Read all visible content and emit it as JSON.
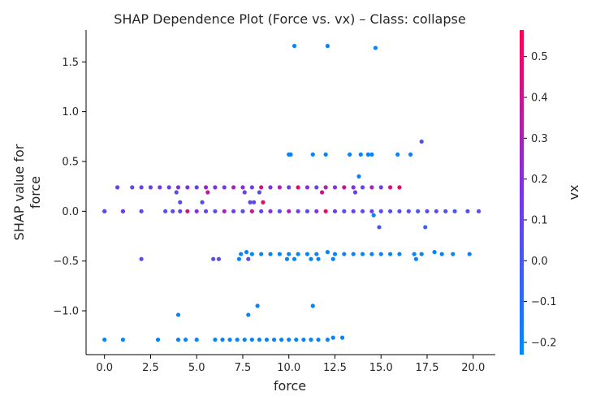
{
  "chart_data": {
    "type": "scatter",
    "title": "SHAP Dependence Plot (Force vs. vx) – Class: collapse",
    "xlabel": "force",
    "ylabel": "SHAP value for\nforce",
    "colorbar_label": "vx",
    "xlim": [
      -1.0,
      21.2
    ],
    "ylim": [
      -1.44,
      1.82
    ],
    "x_ticks": [
      0.0,
      2.5,
      5.0,
      7.5,
      10.0,
      12.5,
      15.0,
      17.5,
      20.0
    ],
    "x_tick_labels": [
      "0.0",
      "2.5",
      "5.0",
      "7.5",
      "10.0",
      "12.5",
      "15.0",
      "17.5",
      "20.0"
    ],
    "y_ticks": [
      -1.0,
      -0.5,
      0.0,
      0.5,
      1.0,
      1.5
    ],
    "y_tick_labels": [
      "−1.0",
      "−0.5",
      "0.0",
      "0.5",
      "1.0",
      "1.5"
    ],
    "colorbar_range": [
      -0.23,
      0.565
    ],
    "colorbar_ticks": [
      -0.2,
      -0.1,
      0.0,
      0.1,
      0.2,
      0.3,
      0.4,
      0.5
    ],
    "colorbar_tick_labels": [
      "−0.2",
      "−0.1",
      "0.0",
      "0.1",
      "0.2",
      "0.3",
      "0.4",
      "0.5"
    ],
    "colormap": [
      "#008afb",
      "#7b33e6",
      "#ff0052"
    ],
    "points": [
      [
        10.3,
        1.66,
        -0.2
      ],
      [
        12.1,
        1.66,
        -0.2
      ],
      [
        14.7,
        1.64,
        -0.2
      ],
      [
        17.2,
        0.7,
        0.05
      ],
      [
        10.0,
        0.57,
        -0.2
      ],
      [
        10.1,
        0.57,
        -0.2
      ],
      [
        11.3,
        0.57,
        -0.2
      ],
      [
        12.0,
        0.57,
        -0.2
      ],
      [
        13.3,
        0.57,
        -0.2
      ],
      [
        13.9,
        0.57,
        -0.2
      ],
      [
        14.3,
        0.57,
        -0.2
      ],
      [
        14.5,
        0.57,
        -0.2
      ],
      [
        15.9,
        0.57,
        -0.2
      ],
      [
        16.6,
        0.57,
        -0.2
      ],
      [
        13.8,
        0.35,
        -0.2
      ],
      [
        0.7,
        0.24,
        0.1
      ],
      [
        1.5,
        0.24,
        0.05
      ],
      [
        2.0,
        0.24,
        0.1
      ],
      [
        2.5,
        0.24,
        0.1
      ],
      [
        3.0,
        0.24,
        0.15
      ],
      [
        3.5,
        0.24,
        0.12
      ],
      [
        4.0,
        0.24,
        0.18
      ],
      [
        4.5,
        0.24,
        0.2
      ],
      [
        5.0,
        0.24,
        0.1
      ],
      [
        5.5,
        0.24,
        0.25
      ],
      [
        6.0,
        0.24,
        0.15
      ],
      [
        6.5,
        0.24,
        0.12
      ],
      [
        7.0,
        0.24,
        0.3
      ],
      [
        7.5,
        0.24,
        0.2
      ],
      [
        8.0,
        0.24,
        0.1
      ],
      [
        8.5,
        0.24,
        0.4
      ],
      [
        9.0,
        0.24,
        0.15
      ],
      [
        9.5,
        0.24,
        0.3
      ],
      [
        10.0,
        0.24,
        0.1
      ],
      [
        10.5,
        0.24,
        0.5
      ],
      [
        11.0,
        0.24,
        0.2
      ],
      [
        11.5,
        0.24,
        0.1
      ],
      [
        12.0,
        0.24,
        0.3
      ],
      [
        12.5,
        0.24,
        0.15
      ],
      [
        13.0,
        0.24,
        0.4
      ],
      [
        13.5,
        0.24,
        0.2
      ],
      [
        14.0,
        0.24,
        0.1
      ],
      [
        14.5,
        0.24,
        0.3
      ],
      [
        15.0,
        0.24,
        0.1
      ],
      [
        15.5,
        0.24,
        0.45
      ],
      [
        16.0,
        0.24,
        0.5
      ],
      [
        3.9,
        0.19,
        0.05
      ],
      [
        5.6,
        0.19,
        0.35
      ],
      [
        7.6,
        0.19,
        0.1
      ],
      [
        8.4,
        0.19,
        0.05
      ],
      [
        11.8,
        0.19,
        0.4
      ],
      [
        13.6,
        0.19,
        0.1
      ],
      [
        4.1,
        0.09,
        0.05
      ],
      [
        5.3,
        0.09,
        0.05
      ],
      [
        7.9,
        0.09,
        0.1
      ],
      [
        8.1,
        0.09,
        0.05
      ],
      [
        8.6,
        0.09,
        0.5
      ],
      [
        0.0,
        0.0,
        0.3
      ],
      [
        0.0,
        0.0,
        0.05
      ],
      [
        1.0,
        0.0,
        0.5
      ],
      [
        1.0,
        0.0,
        0.1
      ],
      [
        2.0,
        0.0,
        0.1
      ],
      [
        3.3,
        0.0,
        0.05
      ],
      [
        3.7,
        0.0,
        0.05
      ],
      [
        4.1,
        0.0,
        0.1
      ],
      [
        4.5,
        0.0,
        0.4
      ],
      [
        5.0,
        0.0,
        0.2
      ],
      [
        5.5,
        0.0,
        0.1
      ],
      [
        6.0,
        0.0,
        0.05
      ],
      [
        6.5,
        0.0,
        0.3
      ],
      [
        7.0,
        0.0,
        0.1
      ],
      [
        7.5,
        0.0,
        0.05
      ],
      [
        8.0,
        0.0,
        0.4
      ],
      [
        8.5,
        0.0,
        0.1
      ],
      [
        9.0,
        0.0,
        0.2
      ],
      [
        9.5,
        0.0,
        0.05
      ],
      [
        10.0,
        0.0,
        0.3
      ],
      [
        10.5,
        0.0,
        0.1
      ],
      [
        11.0,
        0.0,
        0.05
      ],
      [
        11.5,
        0.0,
        0.2
      ],
      [
        12.0,
        0.0,
        0.5
      ],
      [
        12.5,
        0.0,
        0.1
      ],
      [
        13.0,
        0.0,
        0.05
      ],
      [
        13.5,
        0.0,
        0.1
      ],
      [
        14.0,
        0.0,
        0.05
      ],
      [
        14.5,
        0.0,
        0.1
      ],
      [
        15.0,
        0.0,
        0.05
      ],
      [
        15.5,
        0.0,
        0.05
      ],
      [
        16.0,
        0.0,
        0.05
      ],
      [
        16.5,
        0.0,
        0.05
      ],
      [
        17.0,
        0.0,
        0.0
      ],
      [
        17.5,
        0.0,
        0.05
      ],
      [
        18.0,
        0.0,
        0.05
      ],
      [
        18.5,
        0.0,
        0.05
      ],
      [
        19.0,
        0.0,
        0.0
      ],
      [
        19.7,
        0.0,
        0.05
      ],
      [
        20.3,
        0.0,
        0.05
      ],
      [
        14.6,
        -0.04,
        -0.2
      ],
      [
        17.4,
        -0.16,
        -0.05
      ],
      [
        14.9,
        -0.16,
        0.0
      ],
      [
        7.7,
        -0.41,
        -0.2
      ],
      [
        12.1,
        -0.41,
        -0.2
      ],
      [
        17.9,
        -0.41,
        -0.2
      ],
      [
        7.4,
        -0.43,
        -0.2
      ],
      [
        8.0,
        -0.43,
        -0.2
      ],
      [
        8.5,
        -0.43,
        -0.2
      ],
      [
        9.0,
        -0.43,
        -0.2
      ],
      [
        9.5,
        -0.43,
        -0.2
      ],
      [
        10.0,
        -0.43,
        -0.2
      ],
      [
        10.5,
        -0.43,
        -0.2
      ],
      [
        11.0,
        -0.43,
        -0.2
      ],
      [
        11.5,
        -0.43,
        -0.2
      ],
      [
        12.5,
        -0.43,
        -0.2
      ],
      [
        13.0,
        -0.43,
        -0.2
      ],
      [
        13.5,
        -0.43,
        -0.2
      ],
      [
        14.0,
        -0.43,
        -0.2
      ],
      [
        14.5,
        -0.43,
        -0.2
      ],
      [
        15.0,
        -0.43,
        -0.2
      ],
      [
        15.5,
        -0.43,
        -0.2
      ],
      [
        16.0,
        -0.43,
        -0.2
      ],
      [
        16.8,
        -0.43,
        -0.2
      ],
      [
        17.2,
        -0.43,
        -0.2
      ],
      [
        18.3,
        -0.43,
        -0.2
      ],
      [
        18.9,
        -0.43,
        -0.2
      ],
      [
        19.8,
        -0.43,
        -0.2
      ],
      [
        2.0,
        -0.48,
        0.05
      ],
      [
        5.9,
        -0.48,
        0.05
      ],
      [
        6.2,
        -0.48,
        0.05
      ],
      [
        7.3,
        -0.48,
        -0.2
      ],
      [
        7.8,
        -0.48,
        0.05
      ],
      [
        9.9,
        -0.48,
        -0.2
      ],
      [
        10.3,
        -0.48,
        -0.2
      ],
      [
        11.2,
        -0.48,
        -0.2
      ],
      [
        11.6,
        -0.48,
        -0.2
      ],
      [
        12.4,
        -0.48,
        -0.2
      ],
      [
        16.9,
        -0.48,
        -0.2
      ],
      [
        8.3,
        -0.95,
        -0.2
      ],
      [
        11.3,
        -0.95,
        -0.2
      ],
      [
        4.0,
        -1.04,
        -0.2
      ],
      [
        7.8,
        -1.04,
        -0.2
      ],
      [
        12.4,
        -1.27,
        -0.2
      ],
      [
        12.9,
        -1.27,
        -0.2
      ],
      [
        0.0,
        -1.29,
        -0.2
      ],
      [
        1.0,
        -1.29,
        -0.2
      ],
      [
        2.9,
        -1.29,
        -0.2
      ],
      [
        4.0,
        -1.29,
        -0.2
      ],
      [
        4.4,
        -1.29,
        -0.2
      ],
      [
        5.0,
        -1.29,
        -0.2
      ],
      [
        6.0,
        -1.29,
        -0.2
      ],
      [
        6.4,
        -1.29,
        -0.2
      ],
      [
        6.8,
        -1.29,
        -0.2
      ],
      [
        7.2,
        -1.29,
        -0.2
      ],
      [
        7.6,
        -1.29,
        -0.2
      ],
      [
        8.0,
        -1.29,
        -0.2
      ],
      [
        8.4,
        -1.29,
        -0.2
      ],
      [
        8.8,
        -1.29,
        -0.2
      ],
      [
        9.2,
        -1.29,
        -0.2
      ],
      [
        9.6,
        -1.29,
        -0.2
      ],
      [
        10.0,
        -1.29,
        -0.2
      ],
      [
        10.4,
        -1.29,
        -0.2
      ],
      [
        10.8,
        -1.29,
        -0.2
      ],
      [
        11.2,
        -1.29,
        -0.2
      ],
      [
        11.6,
        -1.29,
        -0.2
      ],
      [
        12.1,
        -1.29,
        -0.2
      ]
    ],
    "grid": false
  }
}
